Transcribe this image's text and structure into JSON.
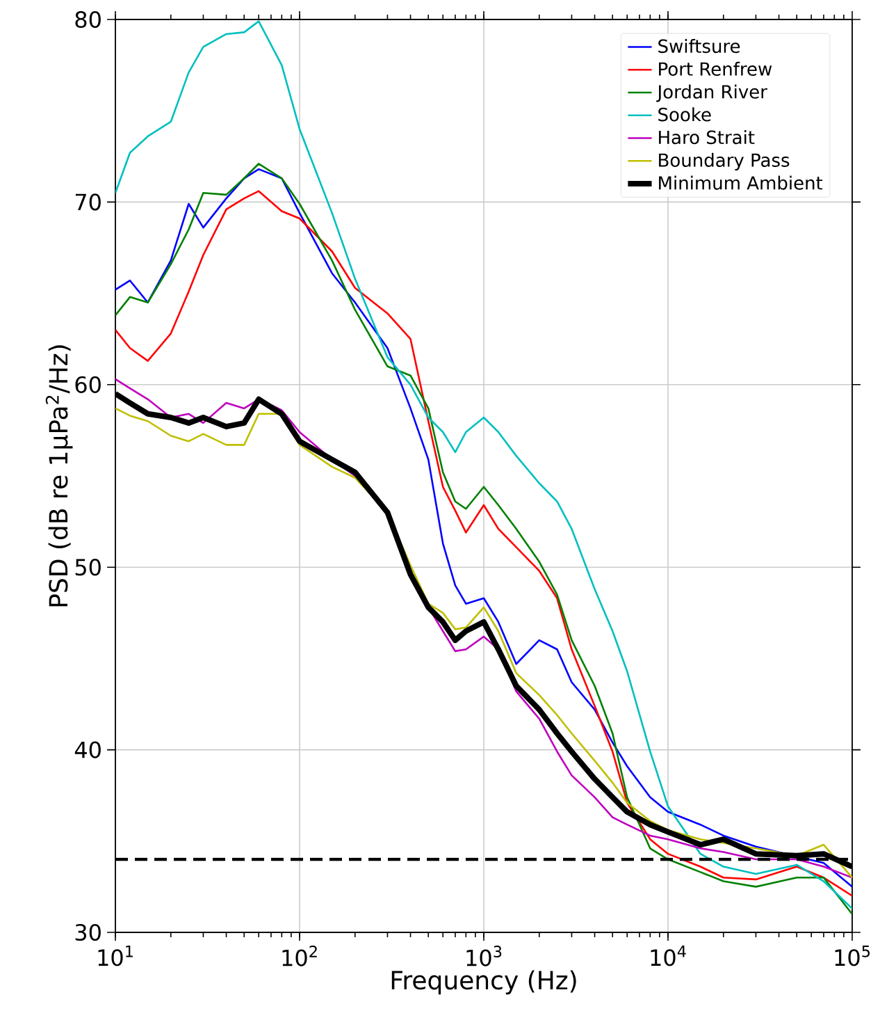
{
  "chart_data": {
    "type": "line",
    "xlabel": "Frequency (Hz)",
    "ylabel": "PSD (dB re 1µPa$^{2}$/Hz)",
    "log": "x",
    "grid": true,
    "legend": "top right",
    "line_style": "solid",
    "marker": "none",
    "xlim": [
      10,
      100000
    ],
    "ylim": [
      30,
      80
    ],
    "xticks": [
      {
        "value": 10,
        "label": "10$^{1}$"
      },
      {
        "value": 100,
        "label": "10$^{2}$"
      },
      {
        "value": 1000,
        "label": "10$^{3}$"
      },
      {
        "value": 10000,
        "label": "10$^{4}$"
      },
      {
        "value": 100000,
        "label": "10$^{5}$"
      }
    ],
    "yticks": [
      30,
      40,
      50,
      60,
      70,
      80
    ],
    "x": [
      10,
      12,
      15,
      20,
      25,
      30,
      40,
      50,
      60,
      80,
      100,
      150,
      200,
      300,
      400,
      500,
      600,
      700,
      800,
      1000,
      1200,
      1500,
      2000,
      2500,
      3000,
      4000,
      5000,
      6000,
      8000,
      10000,
      15000,
      20000,
      30000,
      50000,
      70000,
      100000
    ],
    "series": [
      {
        "name": "Swiftsure",
        "color": "#0000ff",
        "values": [
          65.2,
          65.7,
          64.5,
          66.8,
          69.9,
          68.6,
          70.2,
          71.3,
          71.8,
          71.3,
          69.4,
          66.1,
          64.5,
          62,
          58.7,
          55.9,
          51.3,
          49,
          48,
          48.3,
          47,
          44.7,
          46,
          45.5,
          43.7,
          42.2,
          40.4,
          39.1,
          37.4,
          36.6,
          35.9,
          35.3,
          34.7,
          null,
          33.8,
          32.5
        ]
      },
      {
        "name": "Port Renfrew",
        "color": "#ff0000",
        "values": [
          63,
          62,
          61.3,
          62.8,
          65.1,
          67.1,
          69.6,
          70.2,
          70.6,
          69.5,
          69.1,
          67.3,
          65.3,
          63.9,
          62.5,
          58,
          54.4,
          53.1,
          51.9,
          53.4,
          52.1,
          51.1,
          49.8,
          48.3,
          45.5,
          42.4,
          39.9,
          37.1,
          35.1,
          34.3,
          33.6,
          33,
          32.9,
          33.6,
          33,
          32
        ]
      },
      {
        "name": "Jordan River",
        "color": "#008000",
        "values": [
          63.8,
          64.8,
          64.5,
          66.6,
          68.5,
          70.5,
          70.4,
          71.3,
          72.1,
          71.3,
          69.9,
          66.8,
          64.1,
          61,
          60.5,
          58.7,
          55.2,
          53.6,
          53.2,
          54.4,
          53.4,
          52.1,
          50.3,
          48.5,
          46,
          43.5,
          40.9,
          37.4,
          34.6,
          34,
          33.3,
          32.8,
          32.5,
          33,
          33,
          31
        ]
      },
      {
        "name": "Sooke",
        "color": "#00bfbf",
        "values": [
          70.5,
          72.7,
          73.6,
          74.4,
          77.1,
          78.5,
          79.2,
          79.3,
          79.9,
          77.5,
          74,
          69.4,
          65.8,
          61.5,
          60,
          58.2,
          57.4,
          56.3,
          57.4,
          58.2,
          57.4,
          56.1,
          54.6,
          53.6,
          52.1,
          48.8,
          46.5,
          44.3,
          39.9,
          36.9,
          34.3,
          33.6,
          33.2,
          33.7,
          32.8,
          31.3
        ]
      },
      {
        "name": "Haro Strait",
        "color": "#bf00bf",
        "values": [
          60.3,
          59.8,
          59.2,
          58.2,
          58.4,
          57.9,
          59,
          58.7,
          59.2,
          58.6,
          57.4,
          55.9,
          55,
          53.1,
          49.8,
          47.8,
          46.5,
          45.4,
          45.5,
          46.2,
          45.5,
          43.2,
          41.7,
          39.9,
          38.6,
          37.4,
          36.3,
          35.9,
          35.3,
          35.1,
          34.6,
          34.4,
          34,
          34,
          33.6,
          33
        ]
      },
      {
        "name": "Boundary Pass",
        "color": "#bfbf00",
        "values": [
          58.7,
          58.3,
          58,
          57.2,
          56.9,
          57.3,
          56.7,
          56.7,
          58.4,
          58.4,
          56.7,
          55.5,
          54.9,
          53,
          50.1,
          48,
          47.5,
          46.6,
          46.7,
          47.8,
          46.5,
          44.2,
          43,
          41.9,
          40.9,
          39.4,
          38.2,
          37.1,
          36.1,
          35.6,
          35.1,
          34.9,
          34.6,
          34.2,
          34.8,
          33
        ]
      },
      {
        "name": "Minimum Ambient",
        "color": "#000000",
        "values": [
          59.5,
          59,
          58.4,
          58.2,
          57.9,
          58.2,
          57.7,
          57.9,
          59.2,
          58.4,
          56.9,
          55.9,
          55.2,
          53,
          49.6,
          47.8,
          47,
          46,
          46.5,
          47,
          45.5,
          43.5,
          42.2,
          40.9,
          39.9,
          38.4,
          37.4,
          36.6,
          35.9,
          35.5,
          34.8,
          35.1,
          34.3,
          34.2,
          34.3,
          33.6
        ]
      }
    ],
    "ref_lines": [
      {
        "axis": "y",
        "value": 34,
        "color": "#000000",
        "line_style": "dashed"
      }
    ]
  }
}
